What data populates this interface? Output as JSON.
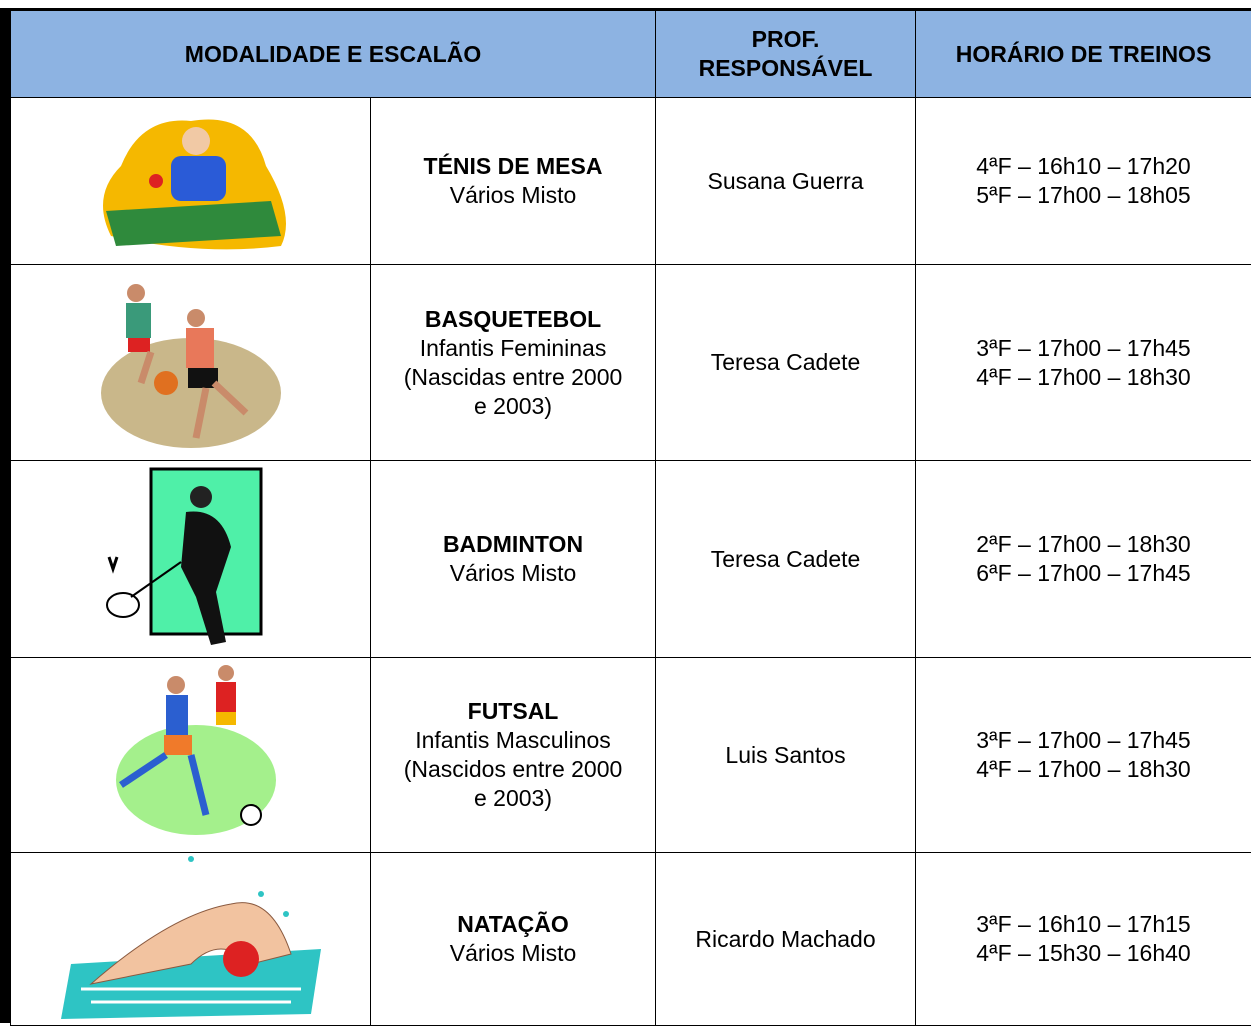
{
  "header": {
    "modalidade": "MODALIDADE E  ESCALÃO",
    "prof": [
      "PROF.",
      "RESPONSÁVEL"
    ],
    "horario": "HORÁRIO DE TREINOS"
  },
  "rows": [
    {
      "modalidade": "TÉNIS DE MESA",
      "escalao": [
        "Vários Misto"
      ],
      "prof": "Susana Guerra",
      "horario": [
        "4ªF – 16h10 – 17h20",
        "5ªF – 17h00 – 18h05"
      ]
    },
    {
      "modalidade": "BASQUETEBOL",
      "escalao": [
        "Infantis Femininas",
        "(Nascidas entre 2000",
        "e 2003)"
      ],
      "prof": "Teresa Cadete",
      "horario": [
        "3ªF – 17h00 – 17h45",
        "4ªF – 17h00 – 18h30"
      ]
    },
    {
      "modalidade": "BADMINTON",
      "escalao": [
        "Vários Misto"
      ],
      "prof": "Teresa Cadete",
      "horario": [
        "2ªF – 17h00 – 18h30",
        "6ªF – 17h00 – 17h45"
      ]
    },
    {
      "modalidade": "FUTSAL",
      "escalao": [
        "Infantis Masculinos",
        "(Nascidos entre 2000",
        "e 2003)"
      ],
      "prof": "Luis Santos",
      "horario": [
        "3ªF – 17h00 – 17h45",
        "4ªF – 17h00 – 18h30"
      ]
    },
    {
      "modalidade": "NATAÇÃO",
      "escalao": [
        "Vários Misto"
      ],
      "prof": "Ricardo Machado",
      "horario": [
        "3ªF – 16h10 – 17h15",
        "4ªF – 15h30 – 16h40"
      ]
    }
  ]
}
